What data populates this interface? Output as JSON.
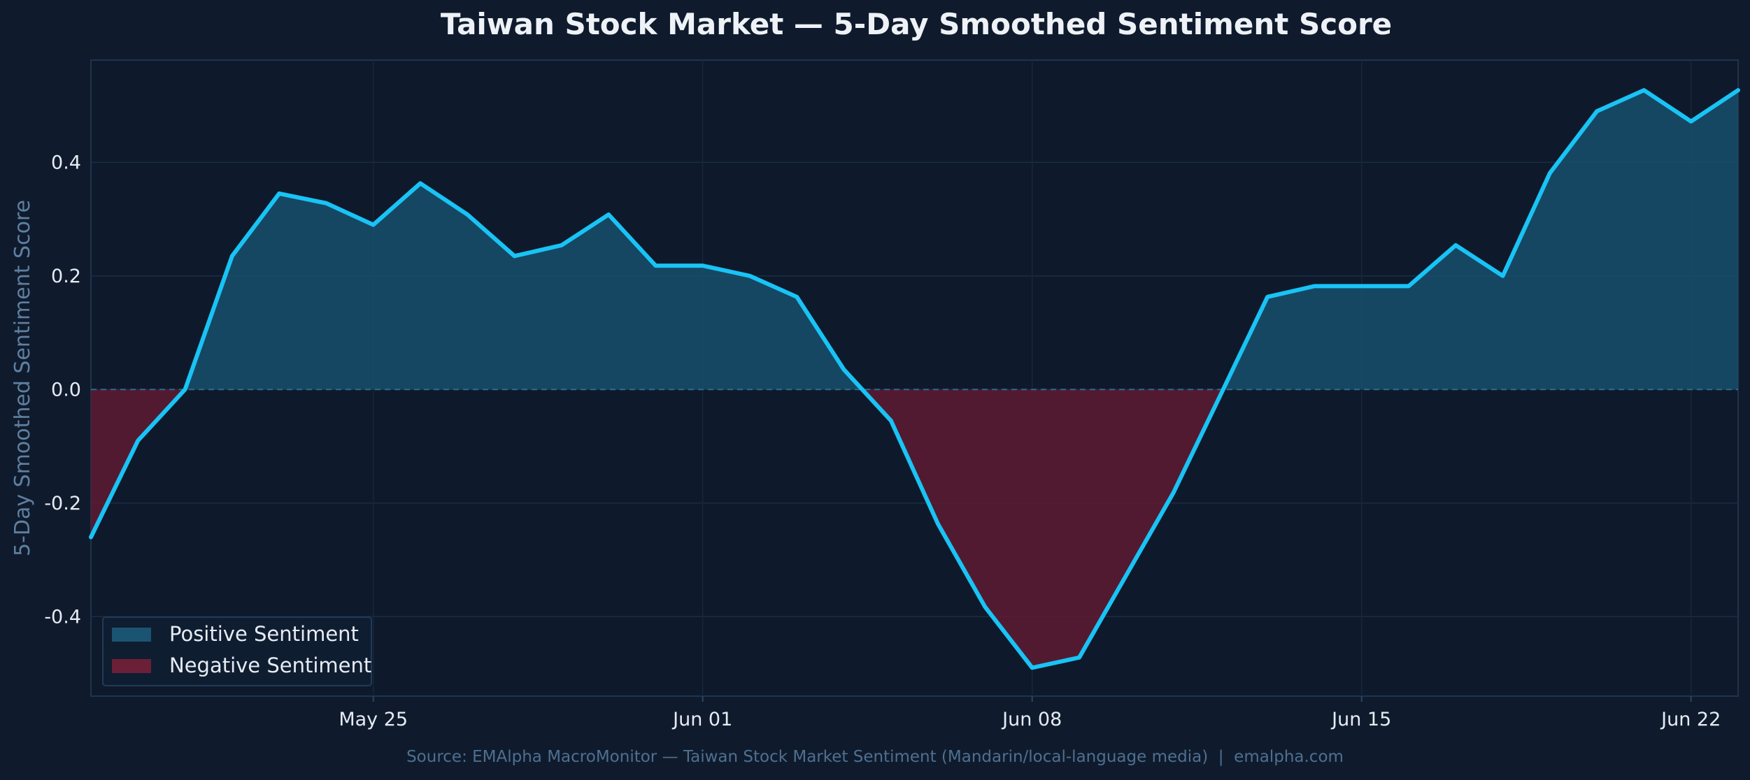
{
  "chart_data": {
    "type": "area",
    "title": "Taiwan Stock Market — 5-Day Smoothed Sentiment Score",
    "xlabel": "",
    "ylabel": "5-Day Smoothed Sentiment Score",
    "x_start": "2025-05-19",
    "x_end": "2025-06-23",
    "x": [
      "May 19",
      "May 20",
      "May 21",
      "May 22",
      "May 23",
      "May 24",
      "May 25",
      "May 26",
      "May 27",
      "May 28",
      "May 29",
      "May 30",
      "May 31",
      "Jun 01",
      "Jun 02",
      "Jun 03",
      "Jun 04",
      "Jun 05",
      "Jun 06",
      "Jun 07",
      "Jun 08",
      "Jun 09",
      "Jun 10",
      "Jun 11",
      "Jun 12",
      "Jun 13",
      "Jun 14",
      "Jun 15",
      "Jun 16",
      "Jun 17",
      "Jun 18",
      "Jun 19",
      "Jun 20",
      "Jun 21",
      "Jun 22",
      "Jun 23"
    ],
    "series": [
      {
        "name": "5-Day Smoothed Sentiment Score",
        "values": [
          -0.26,
          -0.09,
          0.0,
          0.235,
          0.345,
          0.328,
          0.29,
          0.363,
          0.308,
          0.235,
          0.254,
          0.308,
          0.218,
          0.218,
          0.2,
          0.163,
          0.035,
          -0.055,
          -0.237,
          -0.383,
          -0.49,
          -0.472,
          -0.327,
          -0.182,
          -0.01,
          0.163,
          0.182,
          0.182,
          0.182,
          0.254,
          0.2,
          0.381,
          0.49,
          0.527,
          0.472,
          0.527
        ]
      }
    ],
    "fill_threshold": 0.0,
    "xticks": [
      {
        "value": "2025-05-25",
        "label": "May 25"
      },
      {
        "value": "2025-06-01",
        "label": "Jun 01"
      },
      {
        "value": "2025-06-08",
        "label": "Jun 08"
      },
      {
        "value": "2025-06-15",
        "label": "Jun 15"
      },
      {
        "value": "2025-06-22",
        "label": "Jun 22"
      }
    ],
    "ylim": [
      -0.54,
      0.58
    ],
    "yticks": [
      -0.4,
      -0.2,
      0.0,
      0.2,
      0.4
    ],
    "ytick_labels": [
      "-0.4",
      "-0.2",
      "0.0",
      "0.2",
      "0.4"
    ],
    "grid": true,
    "legend": {
      "placement": "bottom-left",
      "entries": [
        {
          "label": "Positive Sentiment",
          "color": "#1b5472"
        },
        {
          "label": "Negative Sentiment",
          "color": "#6b2038"
        }
      ]
    },
    "colors": {
      "line": "#19c3f5",
      "positive_fill": "#17506c",
      "negative_fill": "#5e1b32",
      "background": "#0f1b2d",
      "plot_background": "#0e1a2b",
      "zero_line": "#2e6a8c"
    },
    "source": "Source: EMAlpha MacroMonitor — Taiwan Stock Market Sentiment (Mandarin/local-language media)  |  emalpha.com"
  }
}
